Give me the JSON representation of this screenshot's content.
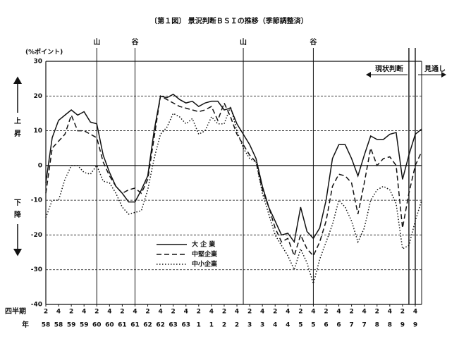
{
  "chart_data": {
    "type": "line",
    "title": "〔第１図〕 景況判断ＢＳＩの推移（季節調整済）",
    "y_axis_label": "(%ポイント)",
    "up_label": [
      "上",
      "昇"
    ],
    "down_label": [
      "下",
      "降"
    ],
    "quarter_row_label": "四半期",
    "year_row_label": "年",
    "current_label": "現状判断",
    "forecast_label": "見通し",
    "x": [
      0,
      1,
      2,
      3,
      4,
      5,
      6,
      7,
      8,
      9,
      10,
      11,
      12,
      13,
      14,
      15,
      16,
      17,
      18,
      19,
      20,
      21,
      22,
      23,
      24,
      25,
      26,
      27,
      28,
      29,
      30,
      31,
      32,
      33,
      34,
      35,
      36,
      37,
      38,
      39,
      40,
      41,
      42,
      43,
      44,
      45,
      46,
      47,
      48,
      49,
      50,
      51,
      52,
      53,
      54,
      55,
      56,
      57,
      58,
      59
    ],
    "xlim": [
      0,
      59
    ],
    "xticks": [
      {
        "value": 0,
        "label": "2"
      },
      {
        "value": 2,
        "label": "4"
      },
      {
        "value": 4,
        "label": "2"
      },
      {
        "value": 6,
        "label": "4"
      },
      {
        "value": 8,
        "label": "2"
      },
      {
        "value": 10,
        "label": "4"
      },
      {
        "value": 12,
        "label": "2"
      },
      {
        "value": 14,
        "label": "4"
      },
      {
        "value": 16,
        "label": "2"
      },
      {
        "value": 18,
        "label": "4"
      },
      {
        "value": 20,
        "label": "2"
      },
      {
        "value": 22,
        "label": "4"
      },
      {
        "value": 24,
        "label": "2"
      },
      {
        "value": 26,
        "label": "4"
      },
      {
        "value": 28,
        "label": "2"
      },
      {
        "value": 30,
        "label": "4"
      },
      {
        "value": 32,
        "label": "2"
      },
      {
        "value": 34,
        "label": "4"
      },
      {
        "value": 36,
        "label": "2"
      },
      {
        "value": 38,
        "label": "4"
      },
      {
        "value": 40,
        "label": "2"
      },
      {
        "value": 42,
        "label": "4"
      },
      {
        "value": 44,
        "label": "2"
      },
      {
        "value": 46,
        "label": "4"
      },
      {
        "value": 48,
        "label": "2"
      },
      {
        "value": 50,
        "label": "4"
      },
      {
        "value": 52,
        "label": "2"
      },
      {
        "value": 54,
        "label": "4"
      },
      {
        "value": 56,
        "label": "2"
      },
      {
        "value": 58,
        "label": "4"
      }
    ],
    "year_ticks": [
      {
        "value": 0,
        "label": "58"
      },
      {
        "value": 2,
        "label": "58"
      },
      {
        "value": 4,
        "label": "59"
      },
      {
        "value": 6,
        "label": "59"
      },
      {
        "value": 8,
        "label": "60"
      },
      {
        "value": 10,
        "label": "60"
      },
      {
        "value": 12,
        "label": "61"
      },
      {
        "value": 14,
        "label": "61"
      },
      {
        "value": 16,
        "label": "62"
      },
      {
        "value": 18,
        "label": "62"
      },
      {
        "value": 20,
        "label": "63"
      },
      {
        "value": 22,
        "label": "63"
      },
      {
        "value": 24,
        "label": "1"
      },
      {
        "value": 26,
        "label": "1"
      },
      {
        "value": 28,
        "label": "2"
      },
      {
        "value": 30,
        "label": "2"
      },
      {
        "value": 32,
        "label": "3"
      },
      {
        "value": 34,
        "label": "3"
      },
      {
        "value": 36,
        "label": "4"
      },
      {
        "value": 38,
        "label": "4"
      },
      {
        "value": 40,
        "label": "5"
      },
      {
        "value": 42,
        "label": "5"
      },
      {
        "value": 44,
        "label": "6"
      },
      {
        "value": 46,
        "label": "6"
      },
      {
        "value": 48,
        "label": "7"
      },
      {
        "value": 50,
        "label": "7"
      },
      {
        "value": 52,
        "label": "8"
      },
      {
        "value": 54,
        "label": "8"
      },
      {
        "value": 56,
        "label": "9"
      },
      {
        "value": 58,
        "label": "9"
      }
    ],
    "ylim": [
      -40,
      30
    ],
    "yticks": [
      30,
      20,
      10,
      0,
      -10,
      -20,
      -30,
      -40
    ],
    "grid": true,
    "cycle_marks": [
      {
        "x": 8,
        "label": "山"
      },
      {
        "x": 14,
        "label": "谷"
      },
      {
        "x": 31,
        "label": "山"
      },
      {
        "x": 42,
        "label": "谷"
      }
    ],
    "forecast_lines": [
      57,
      58
    ],
    "series": [
      {
        "name": "大 企 業",
        "color": "#111111",
        "dash": "solid",
        "values": [
          -5,
          8,
          13,
          14.5,
          16,
          14.5,
          15.5,
          12.5,
          12,
          3,
          -2,
          -6,
          -8,
          -10.5,
          -10.5,
          -7,
          -3,
          10,
          20,
          19.5,
          20.5,
          19,
          18,
          18.5,
          17,
          18,
          18.5,
          18.5,
          16,
          16.5,
          12,
          9,
          6,
          2,
          -6,
          -12,
          -16,
          -20,
          -19.5,
          -22,
          -12,
          -19,
          -21,
          -18,
          -10,
          2,
          6,
          6,
          2,
          -3,
          3,
          8.5,
          7.5,
          7.5,
          9,
          9.5,
          -4,
          3,
          9,
          10.5
        ]
      },
      {
        "name": "中堅企業",
        "color": "#111111",
        "dash": "dashed",
        "values": [
          -8,
          5,
          7,
          9,
          14.5,
          10,
          10,
          9,
          8,
          1,
          -3,
          -6,
          -8,
          -7,
          -6.5,
          -8,
          -4,
          8,
          20,
          19,
          18,
          17,
          16.5,
          16,
          15.5,
          16,
          17,
          13,
          18,
          14,
          9,
          6,
          3,
          1,
          -7,
          -12,
          -18,
          -22,
          -21,
          -26,
          -20,
          -24,
          -26,
          -22,
          -16,
          -6,
          -2.5,
          -3,
          -5,
          -14,
          -5,
          5,
          0,
          2,
          2.5,
          0,
          -18,
          -8,
          0,
          4
        ]
      },
      {
        "name": "中小企業",
        "color": "#111111",
        "dash": "dotted",
        "values": [
          -15,
          -10,
          -10,
          -4,
          0,
          0,
          -2,
          -2.5,
          0,
          -4.5,
          -5,
          -8,
          -12,
          -14,
          -13.5,
          -13,
          -7,
          2,
          9,
          11,
          15,
          14,
          12,
          13.5,
          9,
          10,
          14,
          12,
          12,
          17,
          10,
          5,
          2,
          1,
          -8,
          -14,
          -20,
          -23,
          -26,
          -30,
          -24,
          -28,
          -34,
          -27,
          -22,
          -17,
          -10,
          -12,
          -16,
          -22,
          -18,
          -10,
          -7,
          -6,
          -7,
          -11,
          -24,
          -23,
          -16,
          -10
        ]
      }
    ]
  }
}
